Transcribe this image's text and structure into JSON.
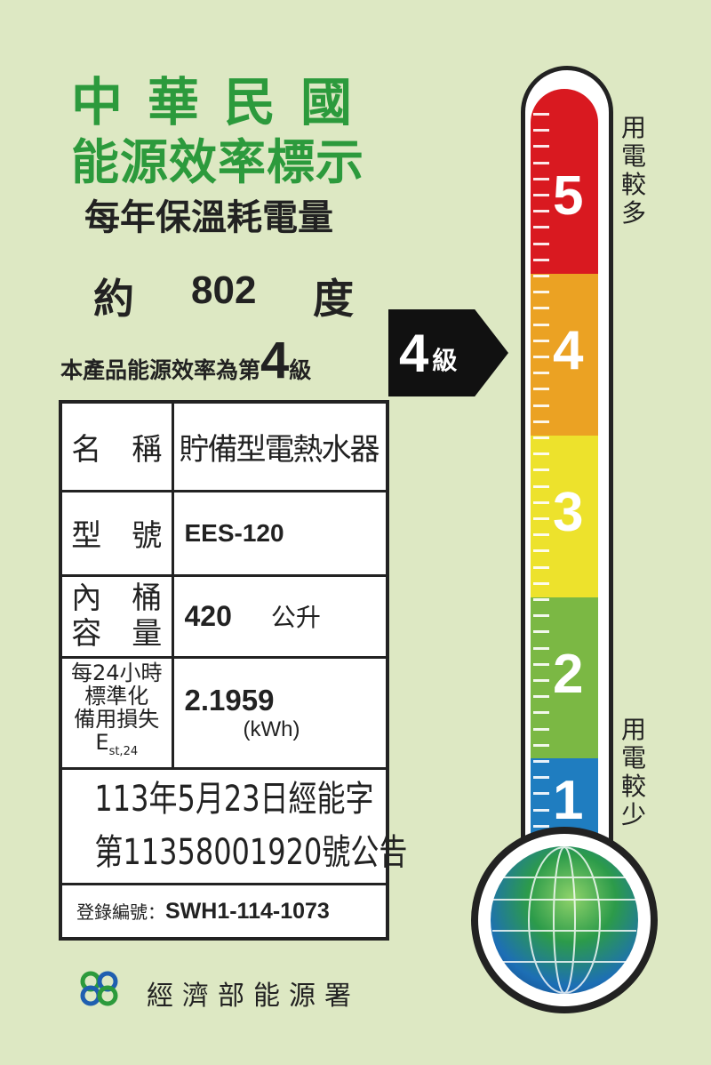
{
  "title_line1": "中華民國",
  "title_line2": "能源效率標示",
  "subtitle": "每年保溫耗電量",
  "consumption": {
    "prefix": "約",
    "value": "802",
    "unit": "度"
  },
  "grade_text": {
    "prefix": "本產品能源效率為第",
    "grade": "4",
    "suffix": "級"
  },
  "grade_arrow": {
    "grade": "4",
    "suffix": "級"
  },
  "table": {
    "name_label": "名　稱",
    "name_value": "貯備型電熱水器",
    "model_label": "型　號",
    "model_value": "EES-120",
    "tank_label_1": "內　桶",
    "tank_label_2": "容　量",
    "tank_value": "420",
    "tank_unit": "公升",
    "loss_label_1": "每24小時",
    "loss_label_2": "標準化",
    "loss_label_3": "備用損失",
    "loss_symbol": "E",
    "loss_sub": "st,24",
    "loss_value": "2.1959",
    "loss_unit": "(kWh)",
    "notice_1": "113年5月23日經能字",
    "notice_2": "第11358001920號公告",
    "reg_label": "登錄編號：",
    "reg_value": "SWH1-114-1073"
  },
  "thermometer": {
    "levels": [
      {
        "n": "5",
        "color": "#d91920"
      },
      {
        "n": "4",
        "color": "#eba223"
      },
      {
        "n": "3",
        "color": "#ede22c"
      },
      {
        "n": "2",
        "color": "#7bb844"
      },
      {
        "n": "1",
        "color": "#1f7dc0"
      }
    ],
    "top_label": "用電較多",
    "bottom_label": "用電較少"
  },
  "footer": {
    "agency": "經濟部能源署",
    "logo_colors": [
      "#2c9a3c",
      "#1f5fb0"
    ]
  }
}
